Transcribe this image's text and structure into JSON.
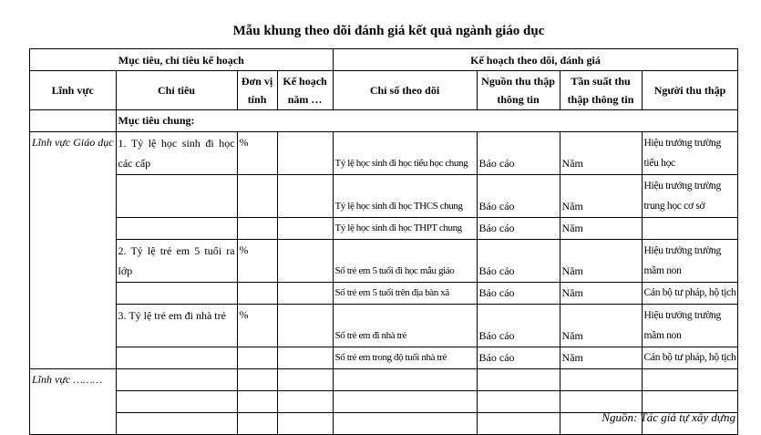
{
  "title": "Mẫu khung theo dõi đánh giá kết quả ngành giáo dục",
  "group_headers": {
    "plan": "Mục tiêu, chỉ tiêu kế hoạch",
    "monitoring": "Kế hoạch theo dõi, đánh giá"
  },
  "columns": [
    "Lĩnh vực",
    "Chỉ tiêu",
    "Đơn vị tính",
    "Kế hoạch năm …",
    "Chỉ số theo dõi",
    "Nguồn thu thập thông tin",
    "Tần suất thu thập thông tin",
    "Người thu thập"
  ],
  "general_goal": "Mục tiêu chung:",
  "fields": [
    "Lĩnh vực Giáo dục",
    "Lĩnh vực ………"
  ],
  "rows": [
    {
      "target": "1. Tỷ lệ học sinh đi học các cấp",
      "unit": "%",
      "plan": "",
      "indicator": "Tỷ lệ học sinh đi học tiểu học chung",
      "source": "Báo cáo",
      "frequency": "Năm",
      "collector": "Hiệu trưởng trường tiểu học"
    },
    {
      "target": "",
      "unit": "",
      "plan": "",
      "indicator": "Tỷ lệ học sinh đi học THCS chung",
      "source": "Báo cáo",
      "frequency": "Năm",
      "collector": "Hiệu trưởng trường trung học cơ sở"
    },
    {
      "target": "",
      "unit": "",
      "plan": "",
      "indicator": "Tỷ lệ học sinh đi học THPT chung",
      "source": "Báo cáo",
      "frequency": "Năm",
      "collector": ""
    },
    {
      "target": "2. Tỷ lệ trẻ em 5 tuổi ra lớp",
      "unit": "%",
      "plan": "",
      "indicator": "Số trẻ em 5 tuổi đi học mẫu giáo",
      "source": "Báo cáo",
      "frequency": "Năm",
      "collector": "Hiệu trưởng trường mầm non"
    },
    {
      "target": "",
      "unit": "",
      "plan": "",
      "indicator": "Số trẻ em 5 tuổi trên địa bàn xã",
      "source": "Báo cáo",
      "frequency": "Năm",
      "collector": "Cán bộ tư pháp, hộ tịch"
    },
    {
      "target": "3. Tỷ lệ trẻ em đi nhà trẻ",
      "unit": "%",
      "plan": "",
      "indicator": "Số trẻ em đi nhà trẻ",
      "source": "Báo cáo",
      "frequency": "Năm",
      "collector": "Hiệu trưởng trường mầm non"
    },
    {
      "target": "",
      "unit": "",
      "plan": "",
      "indicator": "Số trẻ em trong độ tuổi nhà trẻ",
      "source": "Báo cáo",
      "frequency": "Năm",
      "collector": "Cán bộ tư pháp, hộ tịch"
    }
  ],
  "source_note": "Nguồn: Tác giả tự xây dựng"
}
